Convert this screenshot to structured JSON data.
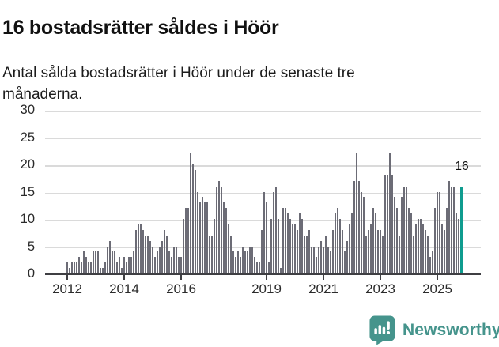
{
  "header": {
    "title": "16 bostadsrätter såldes i Höör",
    "subtitle": "Antal sålda bostadsrätter i Höör under de senaste tre månaderna."
  },
  "chart_data": {
    "type": "bar",
    "title": "16 bostadsrätter såldes i Höör",
    "subtitle": "Antal sålda bostadsrätter i Höör under de senaste tre månaderna.",
    "ylabel": "",
    "xlabel": "",
    "ylim": [
      0,
      30
    ],
    "grid": true,
    "legend": false,
    "y_ticks": [
      0,
      5,
      10,
      15,
      20,
      25,
      30
    ],
    "x_ticks": [
      {
        "label": "2012",
        "index": 0
      },
      {
        "label": "2014",
        "index": 24
      },
      {
        "label": "2016",
        "index": 48
      },
      {
        "label": "2019",
        "index": 84
      },
      {
        "label": "2021",
        "index": 108
      },
      {
        "label": "2023",
        "index": 132
      },
      {
        "label": "2025",
        "index": 156
      }
    ],
    "frequency": "monthly (rolling 3-month count)",
    "values": [
      2,
      1,
      2,
      2,
      2,
      3,
      2,
      4,
      3,
      2,
      2,
      4,
      4,
      4,
      1,
      1,
      2,
      5,
      6,
      4,
      4,
      2,
      3,
      1,
      3,
      2,
      3,
      3,
      4,
      8,
      9,
      9,
      8,
      7,
      7,
      6,
      5,
      3,
      4,
      5,
      6,
      8,
      7,
      4,
      3,
      5,
      5,
      3,
      3,
      10,
      12,
      12,
      22,
      20,
      19,
      15,
      13,
      14,
      13,
      13,
      7,
      7,
      10,
      16,
      17,
      16,
      13,
      12,
      9,
      7,
      4,
      3,
      4,
      3,
      5,
      4,
      4,
      5,
      5,
      3,
      2,
      2,
      8,
      15,
      13,
      2,
      10,
      15,
      16,
      10,
      1,
      12,
      12,
      11,
      10,
      9,
      9,
      8,
      11,
      10,
      7,
      7,
      8,
      5,
      5,
      3,
      5,
      6,
      5,
      7,
      5,
      4,
      8,
      11,
      12,
      10,
      8,
      4,
      6,
      9,
      11,
      17,
      22,
      17,
      15,
      14,
      7,
      8,
      9,
      12,
      11,
      8,
      8,
      7,
      18,
      18,
      22,
      18,
      14,
      12,
      7,
      14,
      16,
      16,
      12,
      11,
      7,
      9,
      10,
      10,
      9,
      8,
      7,
      3,
      4,
      12,
      15,
      15,
      9,
      8,
      12,
      17,
      16,
      16,
      11,
      10,
      16
    ],
    "highlight": {
      "index": 166,
      "value": 16,
      "label": "16",
      "color": "#0f9c8f"
    },
    "bar_color": "#6c6c76",
    "gridline_color": "#dadada",
    "axis_color": "#3f3f43"
  },
  "footer": {
    "brand": "Newsworthy",
    "brand_color": "#45948c",
    "logo_icon": "speech-bubble-bar-chart-icon"
  }
}
